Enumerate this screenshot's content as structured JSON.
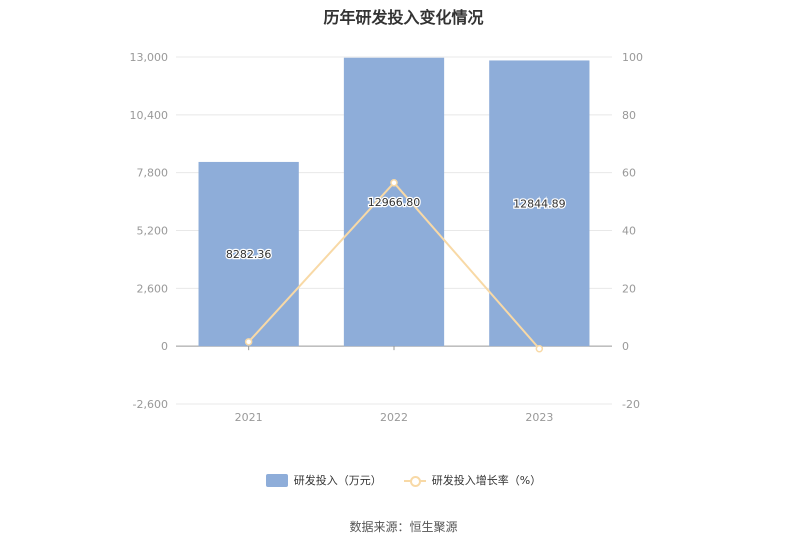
{
  "chart_data": {
    "type": "bar",
    "title": "历年研发投入变化情况",
    "categories": [
      "2021",
      "2022",
      "2023"
    ],
    "series": [
      {
        "name": "研发投入（万元）",
        "type": "bar",
        "axis": "left",
        "values": [
          8282.36,
          12966.8,
          12844.89
        ],
        "labels": [
          "8282.36",
          "12966.80",
          "12844.89"
        ],
        "color": "#8eadd9"
      },
      {
        "name": "研发投入增长率（%）",
        "type": "line",
        "axis": "right",
        "values": [
          1.5,
          56.5,
          -0.9
        ],
        "color": "#f8d9a6"
      }
    ],
    "y_left": {
      "min": -2600,
      "max": 13000,
      "ticks": [
        13000,
        10400,
        7800,
        5200,
        2600,
        0,
        -2600
      ],
      "tick_labels": [
        "13,000",
        "10,400",
        "7,800",
        "5,200",
        "2,600",
        "0",
        "-2,600"
      ]
    },
    "y_right": {
      "min": -20,
      "max": 100,
      "ticks": [
        100,
        80,
        60,
        40,
        20,
        0,
        -20
      ],
      "tick_labels": [
        "100",
        "80",
        "60",
        "40",
        "20",
        "0",
        "-20"
      ]
    },
    "grid": true,
    "legend_position": "bottom"
  },
  "source": "数据来源：恒生聚源"
}
